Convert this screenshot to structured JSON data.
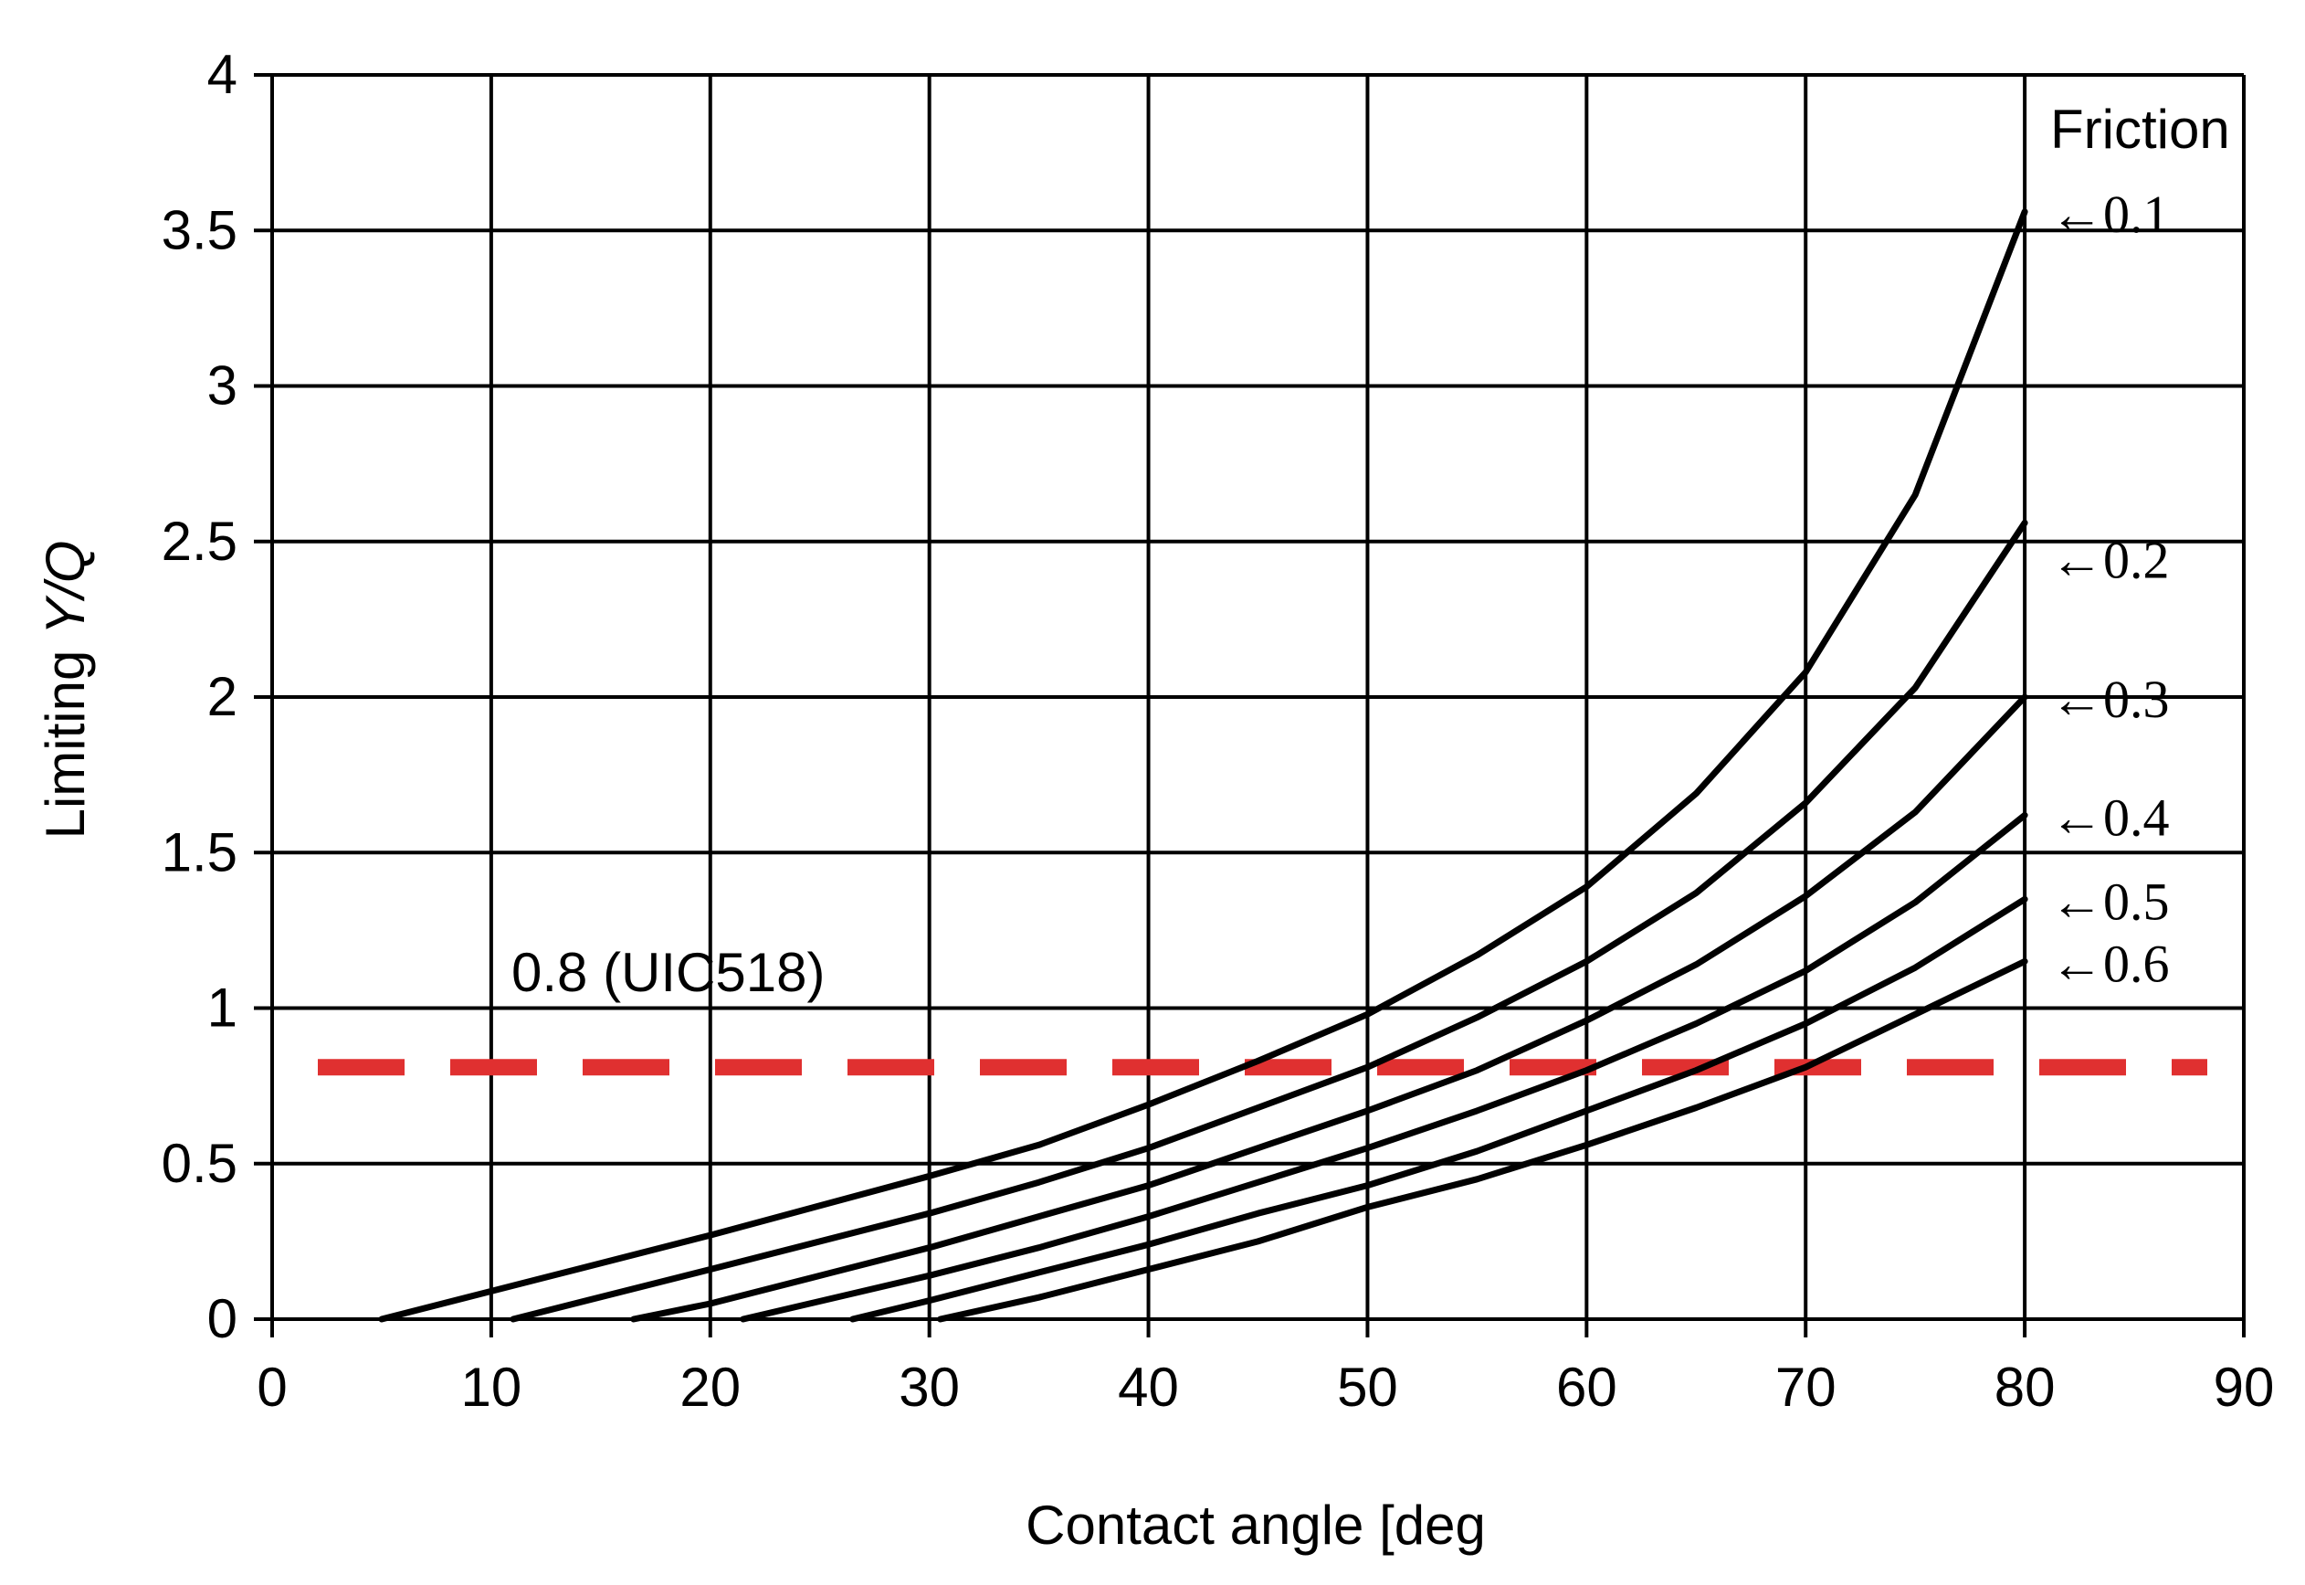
{
  "chart_data": {
    "type": "line",
    "xlabel": "Contact angle [deg",
    "ylabel_parts": [
      "Limiting ",
      "Y/Q"
    ],
    "xlim": [
      0,
      90
    ],
    "ylim": [
      0,
      4
    ],
    "x_ticks": [
      "0",
      "10",
      "20",
      "30",
      "40",
      "50",
      "60",
      "70",
      "80",
      "90"
    ],
    "y_ticks": [
      "0",
      "0.5",
      "1",
      "1.5",
      "2",
      "2.5",
      "3",
      "3.5",
      "4"
    ],
    "grid": true,
    "legend_title": "Friction",
    "series": [
      {
        "name": "0.1",
        "label": "←0.1",
        "x": [
          5,
          10,
          20,
          30,
          35,
          40,
          45,
          50,
          55,
          60,
          65,
          70,
          75,
          80
        ],
        "y": [
          0.0,
          0.09,
          0.27,
          0.46,
          0.56,
          0.69,
          0.83,
          0.98,
          1.17,
          1.39,
          1.69,
          2.08,
          2.65,
          3.56
        ]
      },
      {
        "name": "0.2",
        "label": "←0.2",
        "x": [
          11,
          20,
          30,
          35,
          40,
          45,
          50,
          55,
          60,
          65,
          70,
          75,
          80
        ],
        "y": [
          0.0,
          0.16,
          0.34,
          0.44,
          0.55,
          0.68,
          0.81,
          0.97,
          1.15,
          1.37,
          1.66,
          2.03,
          2.56
        ]
      },
      {
        "name": "0.3",
        "label": "←0.3",
        "x": [
          16.5,
          20,
          30,
          35,
          40,
          45,
          50,
          55,
          60,
          65,
          70,
          75,
          80
        ],
        "y": [
          0.0,
          0.05,
          0.23,
          0.33,
          0.43,
          0.55,
          0.67,
          0.8,
          0.96,
          1.14,
          1.36,
          1.63,
          2.0
        ]
      },
      {
        "name": "0.4",
        "label": "←0.4",
        "x": [
          21.5,
          30,
          35,
          40,
          45,
          50,
          55,
          60,
          65,
          70,
          75,
          80
        ],
        "y": [
          0.0,
          0.14,
          0.23,
          0.33,
          0.44,
          0.55,
          0.67,
          0.8,
          0.95,
          1.12,
          1.34,
          1.62
        ]
      },
      {
        "name": "0.5",
        "label": "←0.5",
        "x": [
          26.5,
          30,
          35,
          40,
          45,
          50,
          55,
          60,
          65,
          70,
          75,
          80
        ],
        "y": [
          0.0,
          0.06,
          0.15,
          0.24,
          0.34,
          0.43,
          0.54,
          0.67,
          0.8,
          0.95,
          1.13,
          1.35
        ]
      },
      {
        "name": "0.6",
        "label": "←0.6",
        "x": [
          30.5,
          35,
          40,
          45,
          50,
          55,
          60,
          65,
          70,
          75,
          80
        ],
        "y": [
          0.0,
          0.07,
          0.16,
          0.25,
          0.36,
          0.45,
          0.56,
          0.68,
          0.81,
          0.98,
          1.15
        ]
      }
    ],
    "reference_line": {
      "label": "0.8 (UIC518)",
      "y": 0.81,
      "color": "#e03030",
      "style": "dashed"
    },
    "colors": {
      "series": "#000000",
      "grid": "#000000",
      "reference": "#e03030"
    }
  }
}
